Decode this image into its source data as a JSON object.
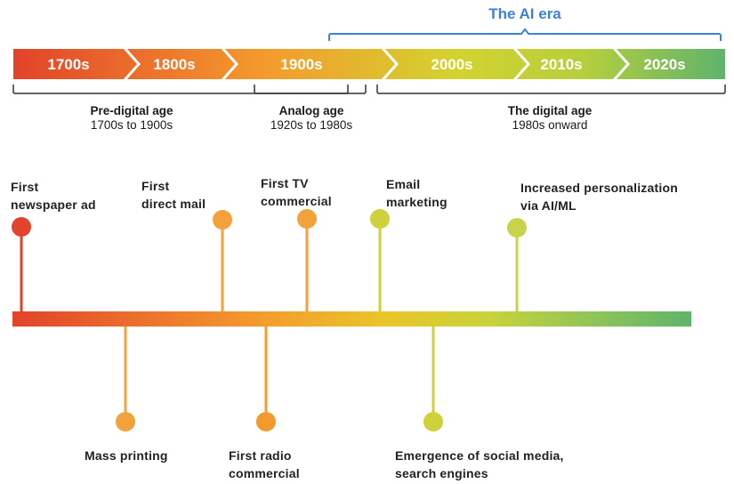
{
  "ai_era": {
    "label": "The AI era",
    "color": "#3b82d6"
  },
  "decades": [
    "1700s",
    "1800s",
    "1900s",
    "2000s",
    "2010s",
    "2020s"
  ],
  "eras": [
    {
      "name": "Pre-digital age",
      "range": "1700s  to 1900s"
    },
    {
      "name": "Analog age",
      "range": "1920s  to 1980s"
    },
    {
      "name": "The digital age",
      "range": "1980s  onward"
    }
  ],
  "events_above": [
    {
      "lines": [
        "First",
        "newspaper ad"
      ],
      "color": "#e2432a"
    },
    {
      "lines": [
        "First",
        "direct mail"
      ],
      "color": "#f3a13b"
    },
    {
      "lines": [
        "First TV",
        "commercial"
      ],
      "color": "#f3a13b"
    },
    {
      "lines": [
        "Email",
        "marketing"
      ],
      "color": "#cfd13a"
    },
    {
      "lines": [
        "Increased personalization",
        "via AI/ML"
      ],
      "color": "#c9d24a"
    }
  ],
  "events_below": [
    {
      "lines": [
        "Mass printing"
      ],
      "color": "#f3a13b"
    },
    {
      "lines": [
        "First radio",
        "commercial"
      ],
      "color": "#f29a2e"
    },
    {
      "lines": [
        "Emergence of social media,",
        "search engines"
      ],
      "color": "#cfd13a"
    }
  ],
  "gradient": {
    "start": "#e2432a",
    "mid1": "#f49a2d",
    "mid2": "#d4d22f",
    "end": "#5fb36c"
  }
}
